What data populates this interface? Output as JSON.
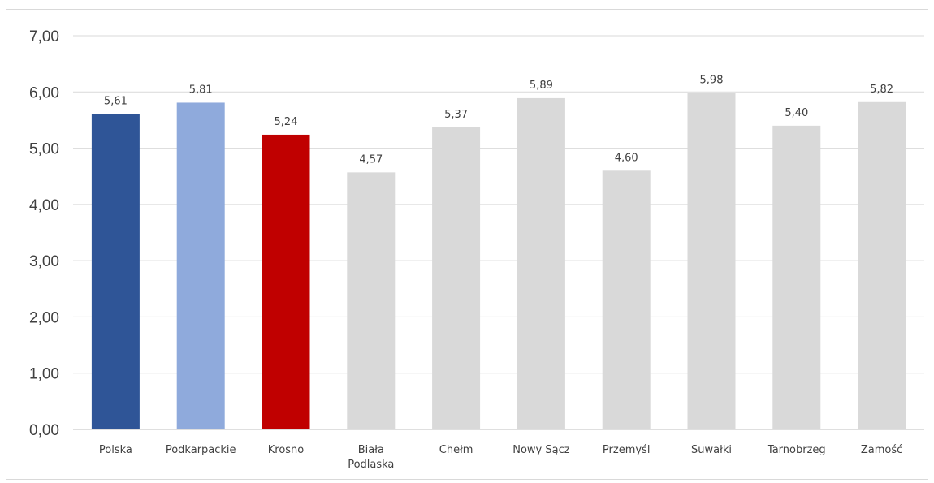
{
  "chart_data": {
    "type": "bar",
    "title": "",
    "xlabel": "",
    "ylabel": "",
    "ylim": [
      0,
      7
    ],
    "yticks": [
      "0,00",
      "1,00",
      "2,00",
      "3,00",
      "4,00",
      "5,00",
      "6,00",
      "7,00"
    ],
    "grid": true,
    "legend": "none",
    "categories": [
      [
        "Polska"
      ],
      [
        "Podkarpackie"
      ],
      [
        "Krosno"
      ],
      [
        "Biała",
        "Podlaska"
      ],
      [
        "Chełm"
      ],
      [
        "Nowy Sącz"
      ],
      [
        "Przemyśl"
      ],
      [
        "Suwałki"
      ],
      [
        "Tarnobrzeg"
      ],
      [
        "Zamość"
      ]
    ],
    "values": [
      5.61,
      5.81,
      5.24,
      4.57,
      5.37,
      5.89,
      4.6,
      5.98,
      5.4,
      5.82
    ],
    "data_labels": [
      "5,61",
      "5,81",
      "5,24",
      "4,57",
      "5,37",
      "5,89",
      "4,60",
      "5,98",
      "5,40",
      "5,82"
    ],
    "colors": [
      "#2f5597",
      "#8faadc",
      "#c00000",
      "#d9d9d9",
      "#d9d9d9",
      "#d9d9d9",
      "#d9d9d9",
      "#d9d9d9",
      "#d9d9d9",
      "#d9d9d9"
    ]
  }
}
